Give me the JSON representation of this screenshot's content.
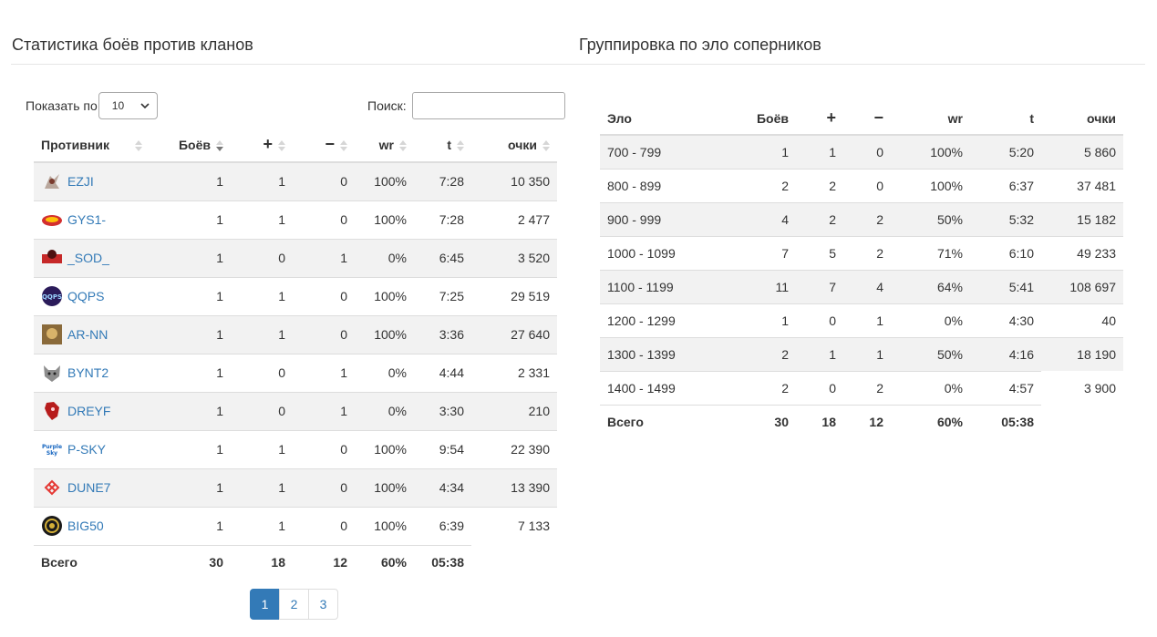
{
  "left_title": "Статистика боёв против кланов",
  "right_title": "Группировка по эло соперников",
  "length": {
    "label": "Показать по",
    "value": "10"
  },
  "search": {
    "label": "Поиск:",
    "value": ""
  },
  "clans_table": {
    "headers": [
      "Противник",
      "Боёв",
      "+",
      "−",
      "wr",
      "t",
      "очки"
    ],
    "rows": [
      {
        "name": "EZJI",
        "battles": "1",
        "wins": "1",
        "losses": "0",
        "wr": "100%",
        "t": "7:28",
        "points": "10 350",
        "logo": "ezji-logo-icon"
      },
      {
        "name": "GYS1-",
        "battles": "1",
        "wins": "1",
        "losses": "0",
        "wr": "100%",
        "t": "7:28",
        "points": "2 477",
        "logo": "gys1-logo-icon"
      },
      {
        "name": "_SOD_",
        "battles": "1",
        "wins": "0",
        "losses": "1",
        "wr": "0%",
        "t": "6:45",
        "points": "3 520",
        "logo": "sod-logo-icon"
      },
      {
        "name": "QQPS",
        "battles": "1",
        "wins": "1",
        "losses": "0",
        "wr": "100%",
        "t": "7:25",
        "points": "29 519",
        "logo": "qqps-logo-icon"
      },
      {
        "name": "AR-NN",
        "battles": "1",
        "wins": "1",
        "losses": "0",
        "wr": "100%",
        "t": "3:36",
        "points": "27 640",
        "logo": "ar-nn-logo-icon"
      },
      {
        "name": "BYNT2",
        "battles": "1",
        "wins": "0",
        "losses": "1",
        "wr": "0%",
        "t": "4:44",
        "points": "2 331",
        "logo": "bynt2-logo-icon"
      },
      {
        "name": "DREYF",
        "battles": "1",
        "wins": "0",
        "losses": "1",
        "wr": "0%",
        "t": "3:30",
        "points": "210",
        "logo": "dreyf-logo-icon"
      },
      {
        "name": "P-SKY",
        "battles": "1",
        "wins": "1",
        "losses": "0",
        "wr": "100%",
        "t": "9:54",
        "points": "22 390",
        "logo": "p-sky-logo-icon"
      },
      {
        "name": "DUNE7",
        "battles": "1",
        "wins": "1",
        "losses": "0",
        "wr": "100%",
        "t": "4:34",
        "points": "13 390",
        "logo": "dune7-logo-icon"
      },
      {
        "name": "BIG50",
        "battles": "1",
        "wins": "1",
        "losses": "0",
        "wr": "100%",
        "t": "6:39",
        "points": "7 133",
        "logo": "big50-logo-icon"
      }
    ],
    "footer": {
      "label": "Всего",
      "battles": "30",
      "wins": "18",
      "losses": "12",
      "wr": "60%",
      "t": "05:38"
    }
  },
  "pagination": {
    "pages": [
      "1",
      "2",
      "3"
    ],
    "active": "1"
  },
  "elo_table": {
    "headers": [
      "Эло",
      "Боёв",
      "+",
      "−",
      "wr",
      "t",
      "очки"
    ],
    "rows": [
      {
        "range": "700 - 799",
        "battles": "1",
        "wins": "1",
        "losses": "0",
        "wr": "100%",
        "t": "5:20",
        "points": "5 860"
      },
      {
        "range": "800 - 899",
        "battles": "2",
        "wins": "2",
        "losses": "0",
        "wr": "100%",
        "t": "6:37",
        "points": "37 481"
      },
      {
        "range": "900 - 999",
        "battles": "4",
        "wins": "2",
        "losses": "2",
        "wr": "50%",
        "t": "5:32",
        "points": "15 182"
      },
      {
        "range": "1000 - 1099",
        "battles": "7",
        "wins": "5",
        "losses": "2",
        "wr": "71%",
        "t": "6:10",
        "points": "49 233"
      },
      {
        "range": "1100 - 1199",
        "battles": "11",
        "wins": "7",
        "losses": "4",
        "wr": "64%",
        "t": "5:41",
        "points": "108 697"
      },
      {
        "range": "1200 - 1299",
        "battles": "1",
        "wins": "0",
        "losses": "1",
        "wr": "0%",
        "t": "4:30",
        "points": "40"
      },
      {
        "range": "1300 - 1399",
        "battles": "2",
        "wins": "1",
        "losses": "1",
        "wr": "50%",
        "t": "4:16",
        "points": "18 190"
      },
      {
        "range": "1400 - 1499",
        "battles": "2",
        "wins": "0",
        "losses": "2",
        "wr": "0%",
        "t": "4:57",
        "points": "3 900"
      }
    ],
    "footer": {
      "label": "Всего",
      "battles": "30",
      "wins": "18",
      "losses": "12",
      "wr": "60%",
      "t": "05:38"
    }
  },
  "colors": {
    "link": "#337ab7",
    "stripe": "#f2f2f2",
    "border": "#dddddd",
    "active_page": "#337ab7"
  }
}
